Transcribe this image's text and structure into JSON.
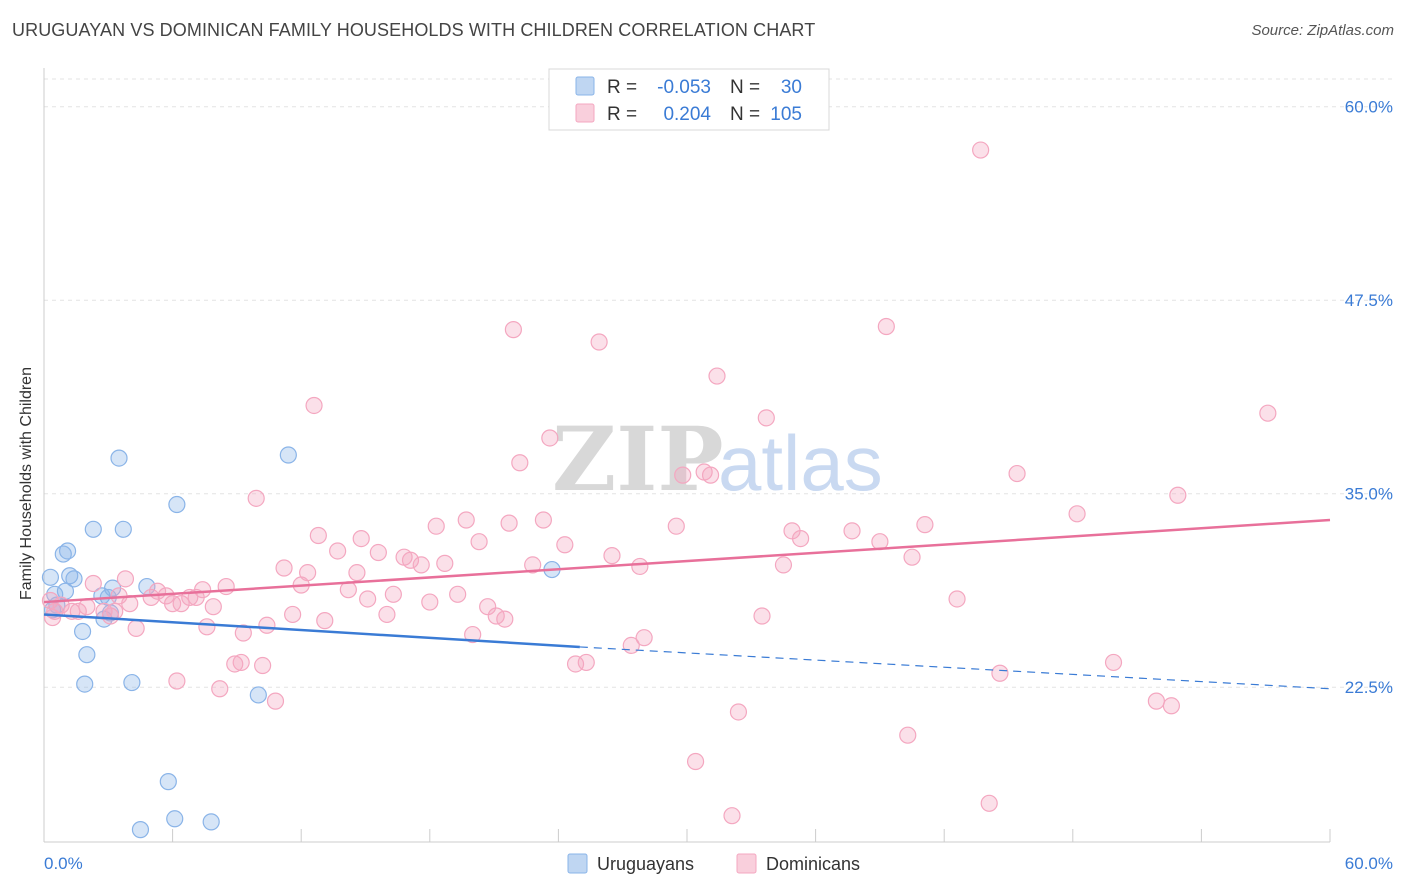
{
  "title": "URUGUAYAN VS DOMINICAN FAMILY HOUSEHOLDS WITH CHILDREN CORRELATION CHART",
  "source": "Source: ZipAtlas.com",
  "watermark": {
    "zip": "ZIP",
    "atlas": "atlas"
  },
  "chart_data": {
    "type": "scatter",
    "title": "URUGUAYAN VS DOMINICAN FAMILY HOUSEHOLDS WITH CHILDREN CORRELATION CHART",
    "xlabel": "",
    "ylabel": "Family Households with Children",
    "xlim": [
      0,
      60
    ],
    "ylim": [
      12.5,
      62.5
    ],
    "x_tick_labels": [
      "0.0%",
      "60.0%"
    ],
    "y_ticks": [
      22.5,
      35.0,
      47.5,
      60.0
    ],
    "y_tick_labels": [
      "22.5%",
      "35.0%",
      "47.5%",
      "60.0%"
    ],
    "grid": true,
    "legend": {
      "position": "top-center",
      "rows": [
        {
          "r_label": "R =",
          "r_value": "-0.053",
          "n_label": "N =",
          "n_value": "30"
        },
        {
          "r_label": "R =",
          "r_value": "0.204",
          "n_label": "N =",
          "n_value": "105"
        }
      ]
    },
    "series": [
      {
        "name": "Uruguayans",
        "color": "#8ab4e8",
        "line_color": "#3a7bd5",
        "trend": {
          "x0": 0,
          "y0": 27.2,
          "x1": 25,
          "y1": 25.1,
          "x_dash_end": 60,
          "y_dash_end": 22.4
        },
        "points": [
          [
            0.3,
            29.6
          ],
          [
            0.4,
            27.5
          ],
          [
            0.5,
            28.5
          ],
          [
            0.6,
            27.8
          ],
          [
            0.9,
            31.1
          ],
          [
            1.0,
            28.7
          ],
          [
            1.1,
            31.3
          ],
          [
            1.2,
            29.7
          ],
          [
            1.4,
            29.5
          ],
          [
            1.8,
            26.1
          ],
          [
            1.9,
            22.7
          ],
          [
            2.0,
            24.6
          ],
          [
            2.3,
            32.7
          ],
          [
            2.7,
            28.4
          ],
          [
            2.8,
            26.9
          ],
          [
            3.0,
            28.3
          ],
          [
            3.1,
            27.3
          ],
          [
            3.2,
            28.9
          ],
          [
            3.5,
            37.3
          ],
          [
            3.7,
            32.7
          ],
          [
            4.1,
            22.8
          ],
          [
            4.5,
            13.3
          ],
          [
            4.8,
            29.0
          ],
          [
            5.8,
            16.4
          ],
          [
            6.1,
            14.0
          ],
          [
            6.2,
            34.3
          ],
          [
            7.8,
            13.8
          ],
          [
            10.0,
            22.0
          ],
          [
            11.4,
            37.5
          ],
          [
            23.7,
            30.1
          ]
        ]
      },
      {
        "name": "Dominicans",
        "color": "#f4a7c0",
        "line_color": "#e8709a",
        "trend": {
          "x0": 0,
          "y0": 28.0,
          "x1": 60,
          "y1": 33.3
        },
        "points": [
          [
            0.3,
            28.1
          ],
          [
            0.5,
            27.4
          ],
          [
            0.8,
            27.8
          ],
          [
            1.3,
            27.4
          ],
          [
            1.6,
            27.4
          ],
          [
            2.0,
            27.7
          ],
          [
            2.3,
            29.2
          ],
          [
            2.8,
            27.4
          ],
          [
            3.1,
            27.1
          ],
          [
            3.3,
            27.4
          ],
          [
            3.5,
            28.4
          ],
          [
            3.8,
            29.5
          ],
          [
            4.0,
            27.9
          ],
          [
            4.3,
            26.3
          ],
          [
            5.0,
            28.3
          ],
          [
            5.3,
            28.7
          ],
          [
            5.7,
            28.4
          ],
          [
            6.0,
            27.9
          ],
          [
            6.2,
            22.9
          ],
          [
            6.4,
            27.9
          ],
          [
            6.8,
            28.3
          ],
          [
            7.1,
            28.3
          ],
          [
            7.4,
            28.8
          ],
          [
            7.6,
            26.4
          ],
          [
            7.9,
            27.7
          ],
          [
            8.2,
            22.4
          ],
          [
            8.5,
            29.0
          ],
          [
            8.9,
            24.0
          ],
          [
            9.2,
            24.1
          ],
          [
            9.3,
            26.0
          ],
          [
            9.9,
            34.7
          ],
          [
            10.2,
            23.9
          ],
          [
            10.4,
            26.5
          ],
          [
            10.8,
            21.6
          ],
          [
            11.2,
            30.2
          ],
          [
            11.6,
            27.2
          ],
          [
            12.0,
            29.1
          ],
          [
            12.3,
            29.9
          ],
          [
            12.6,
            40.7
          ],
          [
            12.8,
            32.3
          ],
          [
            13.1,
            26.8
          ],
          [
            13.7,
            31.3
          ],
          [
            14.2,
            28.8
          ],
          [
            14.6,
            29.9
          ],
          [
            14.8,
            32.1
          ],
          [
            15.1,
            28.2
          ],
          [
            15.6,
            31.2
          ],
          [
            16.0,
            27.2
          ],
          [
            16.3,
            28.5
          ],
          [
            16.8,
            30.9
          ],
          [
            17.1,
            30.7
          ],
          [
            17.6,
            30.4
          ],
          [
            18.0,
            28.0
          ],
          [
            18.3,
            32.9
          ],
          [
            18.7,
            30.5
          ],
          [
            19.3,
            28.5
          ],
          [
            19.7,
            33.3
          ],
          [
            20.0,
            25.9
          ],
          [
            20.3,
            31.9
          ],
          [
            20.7,
            27.7
          ],
          [
            21.1,
            27.1
          ],
          [
            21.5,
            26.9
          ],
          [
            21.7,
            33.1
          ],
          [
            21.9,
            45.6
          ],
          [
            22.2,
            37.0
          ],
          [
            22.8,
            30.4
          ],
          [
            23.3,
            33.3
          ],
          [
            23.6,
            38.6
          ],
          [
            24.3,
            31.7
          ],
          [
            24.8,
            24.0
          ],
          [
            25.3,
            24.1
          ],
          [
            25.9,
            44.8
          ],
          [
            26.5,
            31.0
          ],
          [
            27.4,
            25.2
          ],
          [
            27.8,
            30.3
          ],
          [
            28.0,
            25.7
          ],
          [
            29.5,
            32.9
          ],
          [
            29.8,
            36.2
          ],
          [
            30.4,
            17.7
          ],
          [
            30.8,
            36.4
          ],
          [
            31.1,
            36.2
          ],
          [
            31.4,
            42.6
          ],
          [
            32.1,
            14.2
          ],
          [
            32.4,
            20.9
          ],
          [
            33.5,
            27.1
          ],
          [
            33.7,
            39.9
          ],
          [
            34.5,
            30.4
          ],
          [
            34.9,
            32.6
          ],
          [
            35.3,
            32.1
          ],
          [
            37.7,
            32.6
          ],
          [
            39.0,
            31.9
          ],
          [
            39.3,
            45.8
          ],
          [
            40.3,
            19.4
          ],
          [
            40.5,
            30.9
          ],
          [
            41.1,
            33.0
          ],
          [
            42.6,
            28.2
          ],
          [
            43.7,
            57.2
          ],
          [
            44.1,
            15.0
          ],
          [
            44.6,
            23.4
          ],
          [
            45.4,
            36.3
          ],
          [
            48.2,
            33.7
          ],
          [
            49.9,
            24.1
          ],
          [
            51.9,
            21.6
          ],
          [
            52.6,
            21.3
          ],
          [
            52.9,
            34.9
          ],
          [
            57.1,
            40.2
          ],
          [
            0.4,
            27.0
          ]
        ]
      }
    ]
  }
}
